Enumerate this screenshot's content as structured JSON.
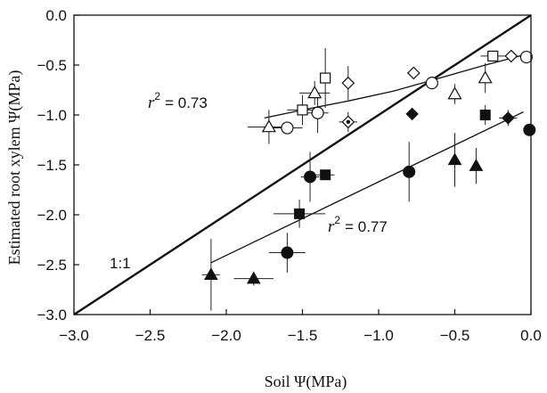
{
  "chart_data": {
    "type": "scatter",
    "xlabel": "Soil Ψ(MPa)",
    "ylabel": "Estimated root xylem Ψ(MPa)",
    "xlim": [
      -3.0,
      0.0
    ],
    "ylim": [
      -3.0,
      0.0
    ],
    "x_ticks": [
      "−3.0",
      "−2.5",
      "−2.0",
      "−1.5",
      "−1.0",
      "−0.5",
      "0.0"
    ],
    "y_ticks": [
      "0.0",
      "−0.5",
      "−1.0",
      "−1.5",
      "−2.0",
      "−2.5",
      "−3.0"
    ],
    "grid": false,
    "annotations": {
      "upper_r2_label": "r",
      "upper_r2_sup": "2",
      "upper_r2_value": "= 0.73",
      "lower_r2_label": "r",
      "lower_r2_sup": "2",
      "lower_r2_value": "= 0.77",
      "one_to_one": "1:1"
    },
    "lines": [
      {
        "kind": "one-to-one",
        "points": [
          [
            -3.0,
            -3.0
          ],
          [
            0.0,
            0.0
          ]
        ],
        "width": 2.4
      },
      {
        "kind": "fit-upper",
        "points": [
          [
            -1.75,
            -1.03
          ],
          [
            -1.5,
            -0.95
          ],
          [
            -1.2,
            -0.86
          ],
          [
            -0.9,
            -0.76
          ],
          [
            -0.6,
            -0.63
          ],
          [
            -0.3,
            -0.5
          ],
          [
            -0.05,
            -0.4
          ]
        ],
        "width": 1.3
      },
      {
        "kind": "fit-lower",
        "points": [
          [
            -2.1,
            -2.48
          ],
          [
            -0.05,
            -0.97
          ]
        ],
        "width": 1.3
      }
    ],
    "series": [
      {
        "marker": "circle-open",
        "points": [
          {
            "x": -1.6,
            "y": -1.13,
            "xerr": 0.1,
            "yerr": 0.0
          },
          {
            "x": -1.4,
            "y": -0.98,
            "xerr": 0.07,
            "yerr": 0.2
          },
          {
            "x": -0.65,
            "y": -0.68,
            "xerr": 0.0,
            "yerr": 0.0
          },
          {
            "x": -0.03,
            "y": -0.42,
            "xerr": 0.0,
            "yerr": 0.0
          }
        ]
      },
      {
        "marker": "triangle-open",
        "points": [
          {
            "x": -1.72,
            "y": -1.12,
            "xerr": 0.14,
            "yerr": 0.17
          },
          {
            "x": -1.42,
            "y": -0.78,
            "xerr": 0.1,
            "yerr": 0.12
          },
          {
            "x": -0.5,
            "y": -0.79,
            "xerr": 0.0,
            "yerr": 0.1
          },
          {
            "x": -0.3,
            "y": -0.63,
            "xerr": 0.0,
            "yerr": 0.15
          }
        ]
      },
      {
        "marker": "square-open",
        "points": [
          {
            "x": -1.5,
            "y": -0.95,
            "xerr": 0.1,
            "yerr": 0.15
          },
          {
            "x": -1.35,
            "y": -0.63,
            "xerr": 0.0,
            "yerr": 0.3
          },
          {
            "x": -0.25,
            "y": -0.41,
            "xerr": 0.08,
            "yerr": 0.05
          }
        ]
      },
      {
        "marker": "diamond-open",
        "points": [
          {
            "x": -1.2,
            "y": -0.68,
            "xerr": 0.0,
            "yerr": 0.17
          },
          {
            "x": -0.77,
            "y": -0.58,
            "xerr": 0.0,
            "yerr": 0.0
          },
          {
            "x": -0.13,
            "y": -0.41,
            "xerr": 0.0,
            "yerr": 0.05
          }
        ]
      },
      {
        "marker": "diamond-dot",
        "points": [
          {
            "x": -1.2,
            "y": -1.07,
            "xerr": 0.06,
            "yerr": 0.1
          }
        ]
      },
      {
        "marker": "circle-filled",
        "points": [
          {
            "x": -1.45,
            "y": -1.62,
            "xerr": 0.06,
            "yerr": 0.25
          },
          {
            "x": -1.6,
            "y": -2.38,
            "xerr": 0.12,
            "yerr": 0.2
          },
          {
            "x": -0.8,
            "y": -1.57,
            "xerr": 0.0,
            "yerr": 0.3
          },
          {
            "x": -0.01,
            "y": -1.15,
            "xerr": 0.0,
            "yerr": 0.0
          }
        ]
      },
      {
        "marker": "square-filled",
        "points": [
          {
            "x": -1.35,
            "y": -1.6,
            "xerr": 0.06,
            "yerr": 0.0
          },
          {
            "x": -1.52,
            "y": -1.99,
            "xerr": 0.17,
            "yerr": 0.14
          },
          {
            "x": -0.3,
            "y": -1.0,
            "xerr": 0.0,
            "yerr": 0.1
          }
        ]
      },
      {
        "marker": "diamond-filled",
        "points": [
          {
            "x": -0.78,
            "y": -0.99,
            "xerr": 0.0,
            "yerr": 0.0
          },
          {
            "x": -0.15,
            "y": -1.03,
            "xerr": 0.06,
            "yerr": 0.08
          }
        ]
      },
      {
        "marker": "triangle-filled",
        "points": [
          {
            "x": -2.1,
            "y": -2.6,
            "xerr": 0.06,
            "yerr": 0.36
          },
          {
            "x": -1.82,
            "y": -2.64,
            "xerr": 0.13,
            "yerr": 0.07
          },
          {
            "x": -0.5,
            "y": -1.45,
            "xerr": 0.0,
            "yerr": 0.27
          },
          {
            "x": -0.36,
            "y": -1.51,
            "xerr": 0.0,
            "yerr": 0.18
          }
        ]
      }
    ]
  }
}
